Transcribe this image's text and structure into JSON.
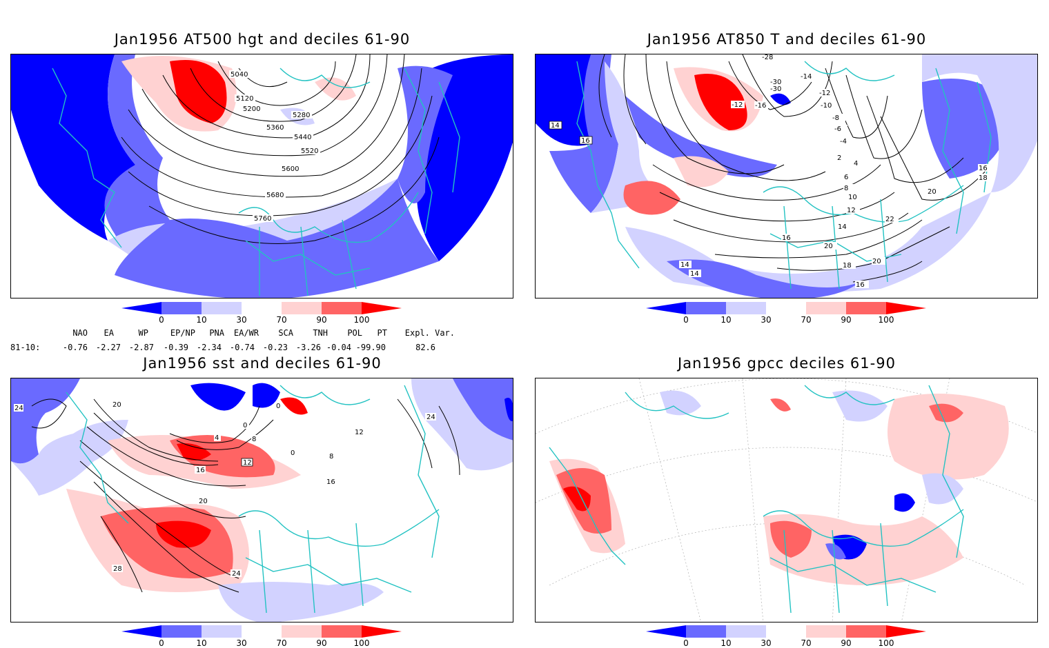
{
  "panels": [
    {
      "id": "at500",
      "title": "Jan1956 AT500 hgt and deciles 61-90",
      "contour_labels": [
        "5040",
        "5120",
        "5200",
        "5280",
        "5360",
        "5440",
        "5520",
        "5600",
        "5680",
        "5760"
      ]
    },
    {
      "id": "at850",
      "title": "Jan1956 AT850 T and deciles 61-90",
      "contour_labels": [
        "-28",
        "-30",
        "-30",
        "-14",
        "-12",
        "-12",
        "-10",
        "-16",
        "-8",
        "-6",
        "-4",
        "2",
        "4",
        "6",
        "8",
        "10",
        "12",
        "14",
        "14",
        "16",
        "16",
        "16",
        "18",
        "16",
        "18",
        "20",
        "20",
        "20",
        "22",
        "14",
        "14",
        "16"
      ]
    },
    {
      "id": "sst",
      "title": "Jan1956 sst and deciles 61-90",
      "contour_labels": [
        "24",
        "20",
        "0",
        "0",
        "4",
        "8",
        "12",
        "16",
        "20",
        "24",
        "28",
        "12",
        "8",
        "16",
        "24",
        "0"
      ]
    },
    {
      "id": "gpcc",
      "title": "Jan1956 gpcc deciles 61-90",
      "contour_labels": []
    }
  ],
  "colorbar": {
    "ticks": [
      "0",
      "10",
      "30",
      "70",
      "90",
      "100"
    ],
    "colors": [
      "#0000ff",
      "#6a6aff",
      "#d2d2ff",
      "#ffffff",
      "#ffd2d2",
      "#ff6464",
      "#ff0000"
    ]
  },
  "indices": {
    "headers": [
      "NAO",
      "EA",
      "WP",
      "EP/NP",
      "PNA",
      "EA/WR",
      "SCA",
      "TNH",
      "POL",
      "PT",
      "Expl. Var."
    ],
    "row_label": "81-10:",
    "values": [
      "-0.76",
      "-2.27",
      "-2.87",
      "-0.39",
      "-2.34",
      "-0.74",
      "-0.23",
      "-3.26",
      "-0.04",
      "-99.90",
      "82.6"
    ]
  },
  "colors": {
    "coast": "#22c2c2",
    "strong_neg": "#0000ff",
    "neg": "#6a6aff",
    "weak_neg": "#d2d2ff",
    "weak_pos": "#ffd2d2",
    "pos": "#ff6464",
    "strong_pos": "#ff0000"
  }
}
